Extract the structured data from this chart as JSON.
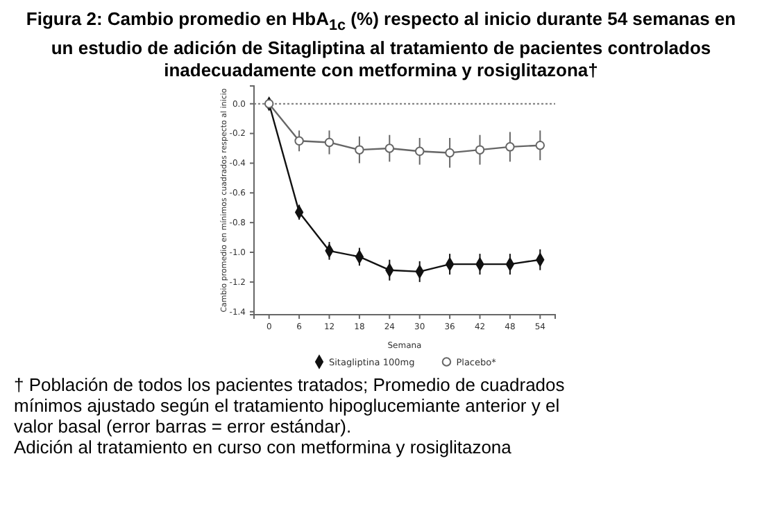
{
  "chart_data": {
    "type": "line",
    "title": "Figura 2: Cambio promedio en HbA$_{1c}$ (%) respecto al inicio durante 54 semanas en un estudio de adición de Sitagliptina al tratamiento de pacientes controlados inadecuadamente con metformina y rosiglitazona†",
    "xlabel": "Semana",
    "ylabel": "Cambio promedio en mínimos cuadrados respecto al inicio",
    "x": [
      0,
      6,
      12,
      18,
      24,
      30,
      36,
      42,
      48,
      54
    ],
    "series": [
      {
        "name": "Sitagliptina 100mg",
        "color": "#111111",
        "marker": "diamond",
        "values": [
          0,
          -0.73,
          -0.99,
          -1.03,
          -1.12,
          -1.13,
          -1.08,
          -1.08,
          -1.08,
          -1.05
        ],
        "errors": [
          null,
          0.05,
          0.06,
          0.06,
          0.07,
          0.07,
          0.07,
          0.07,
          0.07,
          0.07
        ]
      },
      {
        "name": "Placebo*",
        "color": "#666666",
        "marker": "circle",
        "values": [
          0,
          -0.25,
          -0.26,
          -0.31,
          -0.3,
          -0.32,
          -0.33,
          -0.31,
          -0.29,
          -0.28
        ],
        "errors": [
          null,
          0.07,
          0.08,
          0.09,
          0.09,
          0.09,
          0.1,
          0.1,
          0.1,
          0.1
        ]
      }
    ],
    "xlim": [
      -3,
      57
    ],
    "xticks": [
      0,
      6,
      12,
      18,
      24,
      30,
      36,
      42,
      48,
      54
    ],
    "ylim": [
      -1.42,
      0.12
    ],
    "yticks": [
      {
        "value": 0,
        "label": "0.0"
      },
      -0.2,
      -0.4,
      -0.6,
      -0.8,
      {
        "value": -1,
        "label": "-1.0"
      },
      -1.2,
      -1.4
    ],
    "ref_lines": [
      {
        "axis": "y",
        "value": 0,
        "line_style": "dotted",
        "color": "#777777"
      }
    ],
    "legend": "bottom",
    "grid": false,
    "annotations": [
      "† Población de todos los pacientes tratados; Promedio de cuadrados mínimos ajustado según el tratamiento hipoglucemiante anterior y el valor basal (error barras = error estándar).",
      "Adición al tratamiento en curso con metformina y rosiglitazona"
    ]
  }
}
